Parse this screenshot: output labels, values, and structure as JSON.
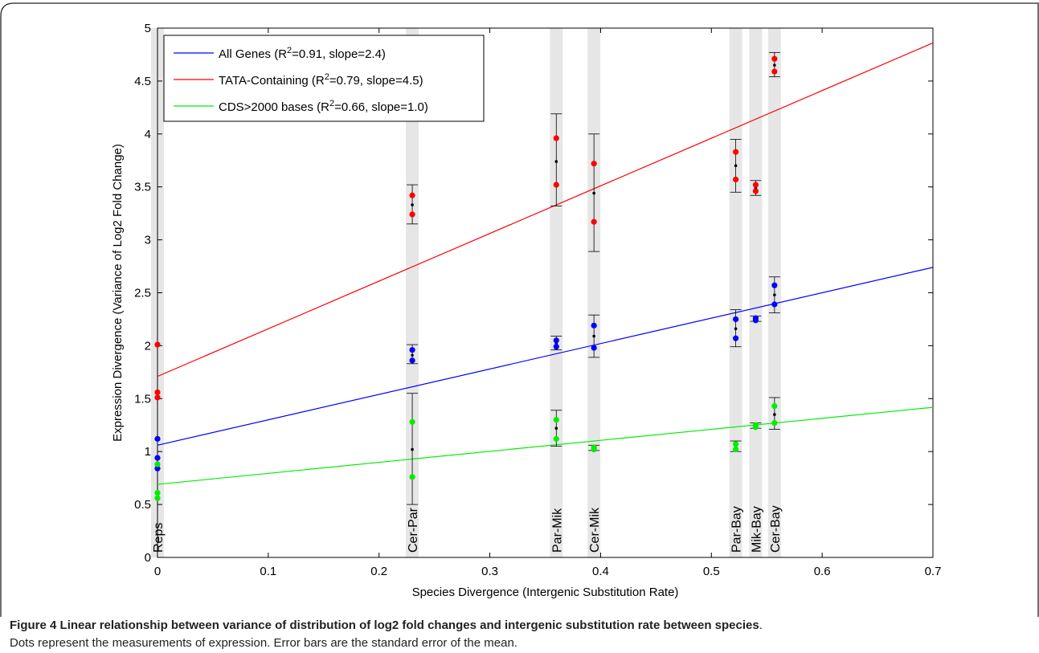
{
  "chart_data": {
    "type": "scatter",
    "xlabel": "Species Divergence (Intergenic Substitution Rate)",
    "ylabel": "Expression Divergence (Variance of Log2 Fold Change)",
    "xlim": [
      0,
      0.7
    ],
    "ylim": [
      0,
      5
    ],
    "xticks": [
      "0",
      "0.1",
      "0.2",
      "0.3",
      "0.4",
      "0.5",
      "0.6",
      "0.7"
    ],
    "yticks": [
      "0",
      "0.5",
      "1",
      "1.5",
      "2",
      "2.5",
      "3",
      "3.5",
      "4",
      "4.5",
      "5"
    ],
    "grid": false,
    "legend_position": "top-left",
    "comparisons": [
      {
        "label": "Reps",
        "x": 0.0
      },
      {
        "label": "Cer-Par",
        "x": 0.23
      },
      {
        "label": "Par-Mik",
        "x": 0.36
      },
      {
        "label": "Cer-Mik",
        "x": 0.394
      },
      {
        "label": "Par-Bay",
        "x": 0.522
      },
      {
        "label": "Mik-Bay",
        "x": 0.54
      },
      {
        "label": "Cer-Bay",
        "x": 0.557
      }
    ],
    "series": [
      {
        "name": "All Genes",
        "legend_prefix": "All Genes (R",
        "legend_suffix": "=0.91, slope=2.4)",
        "color": "#0000ff",
        "fit": {
          "intercept": 1.06,
          "slope": 2.4
        },
        "points": [
          [
            0,
            1.12
          ],
          [
            0,
            0.94
          ],
          [
            0,
            0.84
          ],
          [
            0.23,
            1.96
          ],
          [
            0.23,
            1.86
          ],
          [
            0.36,
            2.05
          ],
          [
            0.36,
            1.99
          ],
          [
            0.394,
            2.19
          ],
          [
            0.394,
            1.98
          ],
          [
            0.522,
            2.25
          ],
          [
            0.522,
            2.07
          ],
          [
            0.54,
            2.26
          ],
          [
            0.54,
            2.24
          ],
          [
            0.557,
            2.57
          ],
          [
            0.557,
            2.39
          ]
        ],
        "means": [
          {
            "x": 0.23,
            "y": 1.91,
            "lo": 1.83,
            "hi": 2.01
          },
          {
            "x": 0.36,
            "y": 2.02,
            "lo": 1.96,
            "hi": 2.09
          },
          {
            "x": 0.394,
            "y": 2.09,
            "lo": 1.89,
            "hi": 2.29
          },
          {
            "x": 0.522,
            "y": 2.16,
            "lo": 1.99,
            "hi": 2.34
          },
          {
            "x": 0.54,
            "y": 2.25,
            "lo": 2.23,
            "hi": 2.28
          },
          {
            "x": 0.557,
            "y": 2.48,
            "lo": 2.31,
            "hi": 2.65
          }
        ]
      },
      {
        "name": "TATA-Containing",
        "legend_prefix": "TATA-Containing (R",
        "legend_suffix": "=0.79, slope=4.5)",
        "color": "#ff0000",
        "fit": {
          "intercept": 1.71,
          "slope": 4.5
        },
        "points": [
          [
            0,
            2.01
          ],
          [
            0,
            1.56
          ],
          [
            0,
            1.51
          ],
          [
            0.23,
            3.42
          ],
          [
            0.23,
            3.24
          ],
          [
            0.36,
            3.96
          ],
          [
            0.36,
            3.52
          ],
          [
            0.394,
            3.72
          ],
          [
            0.394,
            3.17
          ],
          [
            0.522,
            3.83
          ],
          [
            0.522,
            3.57
          ],
          [
            0.54,
            3.52
          ],
          [
            0.54,
            3.46
          ],
          [
            0.557,
            4.71
          ],
          [
            0.557,
            4.59
          ]
        ],
        "means": [
          {
            "x": 0.23,
            "y": 3.33,
            "lo": 3.15,
            "hi": 3.52
          },
          {
            "x": 0.36,
            "y": 3.74,
            "lo": 3.32,
            "hi": 4.19
          },
          {
            "x": 0.394,
            "y": 3.44,
            "lo": 2.89,
            "hi": 4.0
          },
          {
            "x": 0.522,
            "y": 3.7,
            "lo": 3.45,
            "hi": 3.95
          },
          {
            "x": 0.54,
            "y": 3.49,
            "lo": 3.42,
            "hi": 3.56
          },
          {
            "x": 0.557,
            "y": 4.65,
            "lo": 4.54,
            "hi": 4.77
          }
        ]
      },
      {
        "name": "CDS>2000 bases",
        "legend_prefix": "CDS>2000 bases (R",
        "legend_suffix": "=0.66, slope=1.0)",
        "color": "#00ee00",
        "fit": {
          "intercept": 0.69,
          "slope": 1.04
        },
        "points": [
          [
            0,
            0.88
          ],
          [
            0,
            0.61
          ],
          [
            0,
            0.56
          ],
          [
            0.23,
            1.28
          ],
          [
            0.23,
            0.76
          ],
          [
            0.36,
            1.3
          ],
          [
            0.36,
            1.12
          ],
          [
            0.394,
            1.04
          ],
          [
            0.394,
            1.02
          ],
          [
            0.522,
            1.07
          ],
          [
            0.522,
            1.02
          ],
          [
            0.54,
            1.25
          ],
          [
            0.54,
            1.23
          ],
          [
            0.557,
            1.43
          ],
          [
            0.557,
            1.27
          ]
        ],
        "means": [
          {
            "x": 0.23,
            "y": 1.02,
            "lo": 0.5,
            "hi": 1.55
          },
          {
            "x": 0.36,
            "y": 1.22,
            "lo": 1.05,
            "hi": 1.39
          },
          {
            "x": 0.394,
            "y": 1.03,
            "lo": 1.01,
            "hi": 1.06
          },
          {
            "x": 0.522,
            "y": 1.05,
            "lo": 1.0,
            "hi": 1.1
          },
          {
            "x": 0.54,
            "y": 1.24,
            "lo": 1.22,
            "hi": 1.27
          },
          {
            "x": 0.557,
            "y": 1.35,
            "lo": 1.21,
            "hi": 1.51
          }
        ]
      }
    ],
    "legend_sup": "2"
  },
  "caption": {
    "label": "Figure 4",
    "title": "Linear relationship between variance of distribution of log2 fold changes and intergenic substitution rate between species",
    "period": ".",
    "body": "Dots represent the measurements of expression. Error bars are the standard error of the mean."
  }
}
